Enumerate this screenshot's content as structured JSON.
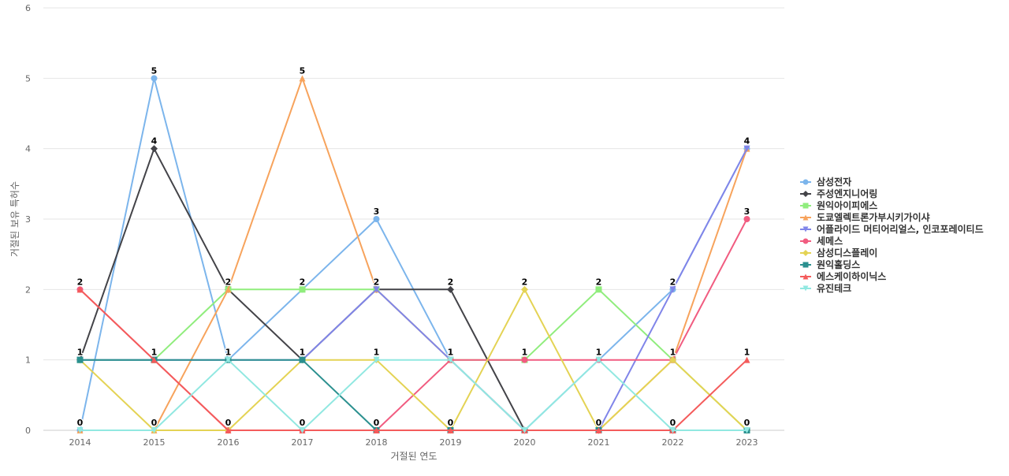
{
  "chart_data": {
    "type": "line",
    "xlabel": "거절된 연도",
    "ylabel": "거절된 보유 특허수",
    "categories": [
      "2014",
      "2015",
      "2016",
      "2017",
      "2018",
      "2019",
      "2020",
      "2021",
      "2022",
      "2023"
    ],
    "ylim": [
      0,
      6
    ],
    "yticks": [
      0,
      1,
      2,
      3,
      4,
      5,
      6
    ],
    "grid": true,
    "legend_position": "right",
    "data_labels": [
      "0",
      "5",
      "2",
      "5",
      "3",
      "2",
      "2",
      "2",
      "2",
      "4",
      "1",
      "1",
      "1",
      "1",
      "1",
      "1",
      "1",
      "1",
      "1",
      "3",
      "0",
      "0",
      "0",
      "0",
      "0",
      "0",
      "0",
      "0",
      "0",
      "2",
      "4",
      "2",
      "1"
    ],
    "series": [
      {
        "name": "삼성전자",
        "color": "#7cb5ec",
        "marker": "circle",
        "values": [
          0,
          5,
          1,
          2,
          3,
          1,
          0,
          1,
          2,
          4
        ]
      },
      {
        "name": "주성엔지니어링",
        "color": "#434348",
        "marker": "diamond",
        "values": [
          1,
          4,
          2,
          1,
          2,
          2,
          0,
          0,
          0,
          0
        ]
      },
      {
        "name": "원익아이피에스",
        "color": "#90ed7d",
        "marker": "square",
        "values": [
          1,
          1,
          2,
          2,
          2,
          1,
          1,
          2,
          1,
          0
        ]
      },
      {
        "name": "도쿄엘렉트론가부시키가이샤",
        "color": "#f7a35c",
        "marker": "triangle",
        "values": [
          0,
          0,
          2,
          5,
          2,
          1,
          0,
          0,
          1,
          4
        ]
      },
      {
        "name": "어플라이드 머티어리얼스, 인코포레이티드",
        "color": "#8085e9",
        "marker": "triangle-down",
        "values": [
          1,
          1,
          1,
          1,
          2,
          1,
          0,
          0,
          2,
          4
        ]
      },
      {
        "name": "세메스",
        "color": "#f15c80",
        "marker": "circle",
        "values": [
          2,
          1,
          0,
          0,
          0,
          1,
          1,
          1,
          1,
          3
        ]
      },
      {
        "name": "삼성디스플레이",
        "color": "#e4d354",
        "marker": "diamond",
        "values": [
          1,
          0,
          0,
          1,
          1,
          0,
          2,
          0,
          1,
          0
        ]
      },
      {
        "name": "원익홀딩스",
        "color": "#2b908f",
        "marker": "square",
        "values": [
          1,
          1,
          1,
          1,
          0,
          0,
          0,
          0,
          0,
          0
        ]
      },
      {
        "name": "에스케이하이닉스",
        "color": "#f45b5b",
        "marker": "triangle",
        "values": [
          2,
          1,
          0,
          0,
          0,
          0,
          0,
          0,
          0,
          1
        ]
      },
      {
        "name": "유진테크",
        "color": "#91e8e1",
        "marker": "triangle-down",
        "values": [
          0,
          0,
          1,
          0,
          1,
          1,
          0,
          1,
          0,
          0
        ]
      }
    ]
  }
}
